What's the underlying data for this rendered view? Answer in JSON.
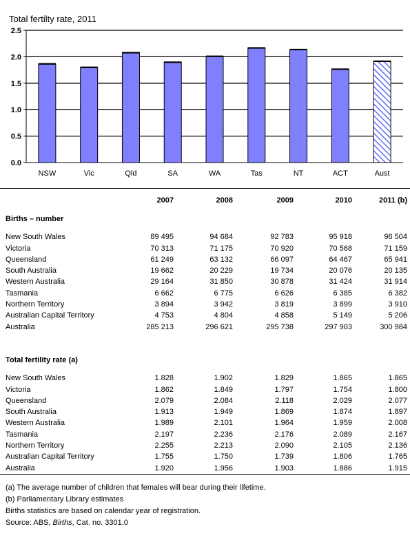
{
  "chart_data": {
    "type": "bar",
    "title": "Total fertilty rate, 2011",
    "categories": [
      "NSW",
      "Vic",
      "Qld",
      "SA",
      "WA",
      "Tas",
      "NT",
      "ACT",
      "Aust"
    ],
    "values": [
      1.865,
      1.8,
      2.077,
      1.897,
      2.008,
      2.167,
      2.136,
      1.765,
      1.915
    ],
    "ylim": [
      0,
      2.5
    ],
    "yticks": [
      "0.0",
      "0.5",
      "1.0",
      "1.5",
      "2.0",
      "2.5"
    ],
    "grid": true,
    "bar_color": "#8080ff",
    "hatched_category": "Aust"
  },
  "table": {
    "years": [
      "2007",
      "2008",
      "2009",
      "2010",
      "2011 (b)"
    ],
    "sections": [
      {
        "title": "Births – number",
        "rows": [
          {
            "label": "New South Wales",
            "values": [
              "89 495",
              "94 684",
              "92 783",
              "95 918",
              "96 504"
            ]
          },
          {
            "label": "Victoria",
            "values": [
              "70 313",
              "71 175",
              "70 920",
              "70 568",
              "71 159"
            ]
          },
          {
            "label": "Queensland",
            "values": [
              "61 249",
              "63 132",
              "66 097",
              "64 467",
              "65 941"
            ]
          },
          {
            "label": "South Australia",
            "values": [
              "19 662",
              "20 229",
              "19 734",
              "20 076",
              "20 135"
            ]
          },
          {
            "label": "Western Australia",
            "values": [
              "29 164",
              "31 850",
              "30 878",
              "31 424",
              "31 914"
            ]
          },
          {
            "label": "Tasmania",
            "values": [
              "6 662",
              "6 775",
              "6 626",
              "6 385",
              "6 382"
            ]
          },
          {
            "label": "Northern Territory",
            "values": [
              "3 894",
              "3 942",
              "3 819",
              "3 899",
              "3 910"
            ]
          },
          {
            "label": "Australian Capital Territory",
            "values": [
              "4 753",
              "4 804",
              "4 858",
              "5 149",
              "5 206"
            ]
          },
          {
            "label": "Australia",
            "values": [
              "285 213",
              "296 621",
              "295 738",
              "297 903",
              "300 984"
            ]
          }
        ]
      },
      {
        "title": "Total fertility rate (a)",
        "rows": [
          {
            "label": "New South Wales",
            "values": [
              "1.828",
              "1.902",
              "1.829",
              "1.865",
              "1.865"
            ]
          },
          {
            "label": "Victoria",
            "values": [
              "1.862",
              "1.849",
              "1.797",
              "1.754",
              "1.800"
            ]
          },
          {
            "label": "Queensland",
            "values": [
              "2.079",
              "2.084",
              "2.118",
              "2.029",
              "2.077"
            ]
          },
          {
            "label": "South Australia",
            "values": [
              "1.913",
              "1.949",
              "1.869",
              "1.874",
              "1.897"
            ]
          },
          {
            "label": "Western Australia",
            "values": [
              "1.989",
              "2.101",
              "1.964",
              "1.959",
              "2.008"
            ]
          },
          {
            "label": "Tasmania",
            "values": [
              "2.197",
              "2.236",
              "2.176",
              "2.089",
              "2.167"
            ]
          },
          {
            "label": "Northern Territory",
            "values": [
              "2.255",
              "2.213",
              "2.090",
              "2.105",
              "2.136"
            ]
          },
          {
            "label": "Australian Capital Territory",
            "values": [
              "1.755",
              "1.750",
              "1.739",
              "1.806",
              "1.765"
            ]
          },
          {
            "label": "Australia",
            "values": [
              "1.920",
              "1.956",
              "1.903",
              "1.886",
              "1.915"
            ]
          }
        ]
      }
    ]
  },
  "notes": {
    "a": "(a) The average number of children that females will bear during their lifetime.",
    "b": "(b) Parliamentary Library estimates",
    "calendar": "Births statistics are based on calendar year of registration.",
    "source_prefix": "Source: ABS, ",
    "source_italic": "Births",
    "source_suffix": ", Cat. no. 3301.0"
  }
}
